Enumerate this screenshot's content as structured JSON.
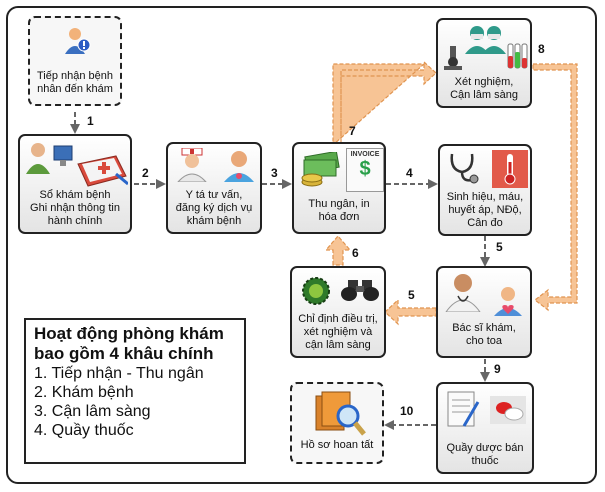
{
  "nodes": {
    "reception": {
      "label_line1": "Tiếp nhận bệnh",
      "label_line2": "nhân đến khám"
    },
    "registration": {
      "label_line1": "Sổ khám bệnh",
      "label_line2": "Ghi nhận thông tin",
      "label_line3": "hành chính"
    },
    "nurse": {
      "label_line1": "Y tá tư vấn,",
      "label_line2": "đăng ký dịch vụ",
      "label_line3": "khám bệnh"
    },
    "cashier": {
      "label_line1": "Thu ngân, in",
      "label_line2": "hóa đơn",
      "invoice_text": "INVOICE"
    },
    "lab": {
      "label_line1": "Xét nghiệm,",
      "label_line2": "Cận lâm sàng"
    },
    "vitals": {
      "label_line1": "Sinh hiệu, máu,",
      "label_line2": "huyết áp, NĐộ,",
      "label_line3": "Cân đo"
    },
    "orders": {
      "label_line1": "Chỉ định điều trị,",
      "label_line2": "xét nghiệm và",
      "label_line3": "cận lâm sàng"
    },
    "doctor": {
      "label_line1": "Bác sĩ khám,",
      "label_line2": "cho toa"
    },
    "records": {
      "label_line1": "Hồ sơ hoan tất"
    },
    "pharmacy": {
      "label_line1": "Quầy dược bán",
      "label_line2": "thuốc"
    }
  },
  "steps": {
    "s1": "1",
    "s2": "2",
    "s3": "3",
    "s4": "4",
    "s5a": "5",
    "s5b": "5",
    "s6": "6",
    "s7": "7",
    "s8": "8",
    "s9": "9",
    "s10": "10"
  },
  "legend": {
    "title_line1": "Hoạt động phòng khám",
    "title_line2": "bao gồm 4 khâu chính",
    "items": [
      "1. Tiếp nhận - Thu ngân",
      "2. Khám bệnh",
      "3. Cận lâm sàng",
      "4. Quầy thuốc"
    ]
  },
  "colors": {
    "orange_arrow": "#f7c495",
    "orange_border": "#e09450",
    "dashed_arrow": "#666666"
  }
}
